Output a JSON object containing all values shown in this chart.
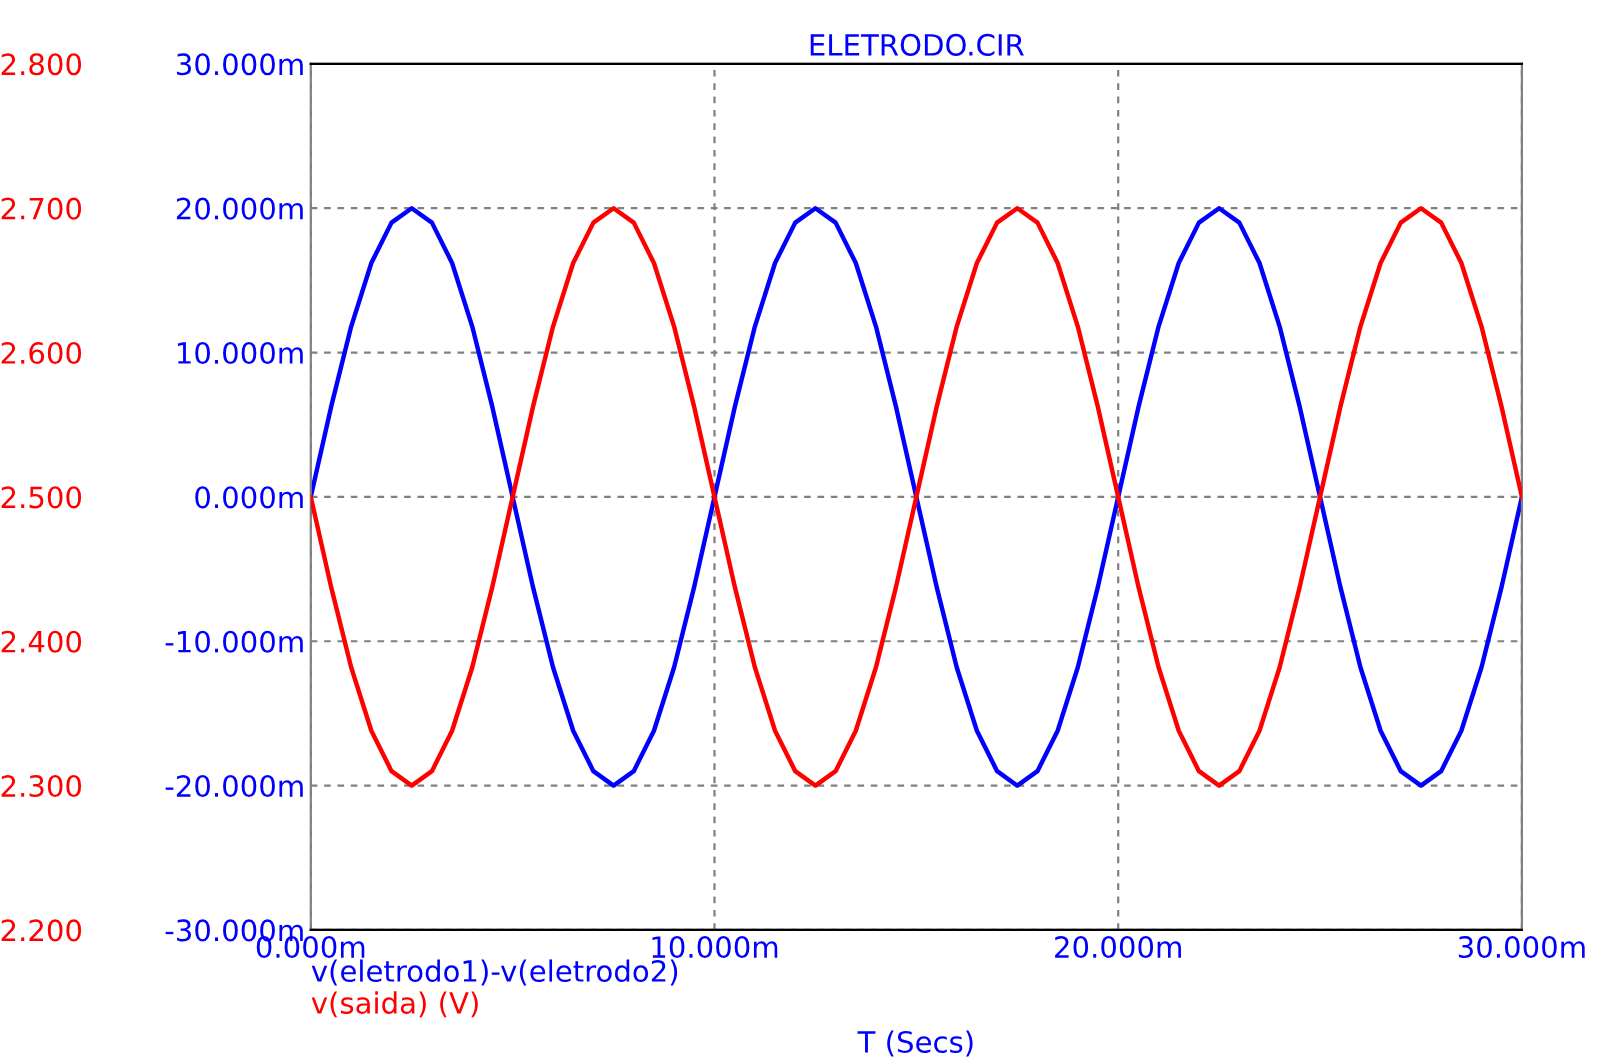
{
  "chart_data": {
    "type": "line",
    "title": "ELETRODO.CIR",
    "xlabel": "T (Secs)",
    "x": [
      0,
      0.5,
      1,
      1.5,
      2,
      2.5,
      3,
      3.5,
      4,
      4.5,
      5,
      5.5,
      6,
      6.5,
      7,
      7.5,
      8,
      8.5,
      9,
      9.5,
      10,
      10.5,
      11,
      11.5,
      12,
      12.5,
      13,
      13.5,
      14,
      14.5,
      15,
      15.5,
      16,
      16.5,
      17,
      17.5,
      18,
      18.5,
      19,
      19.5,
      20,
      20.5,
      21,
      21.5,
      22,
      22.5,
      23,
      23.5,
      24,
      24.5,
      25,
      25.5,
      26,
      26.5,
      27,
      27.5,
      28,
      28.5,
      29,
      29.5,
      30
    ],
    "series": [
      {
        "name": "v(eletrodo1)-v(eletrodo2)",
        "color": "#0000ff",
        "values": [
          0,
          6.2,
          11.8,
          16.2,
          19,
          20,
          19,
          16.2,
          11.8,
          6.2,
          0,
          -6.2,
          -11.8,
          -16.2,
          -19,
          -20,
          -19,
          -16.2,
          -11.8,
          -6.2,
          0,
          6.2,
          11.8,
          16.2,
          19,
          20,
          19,
          16.2,
          11.8,
          6.2,
          0,
          -6.2,
          -11.8,
          -16.2,
          -19,
          -20,
          -19,
          -16.2,
          -11.8,
          -6.2,
          0,
          6.2,
          11.8,
          16.2,
          19,
          20,
          19,
          16.2,
          11.8,
          6.2,
          0,
          -6.2,
          -11.8,
          -16.2,
          -19,
          -20,
          -19,
          -16.2,
          -11.8,
          -6.2,
          0
        ]
      },
      {
        "name": "v(saida) (V)",
        "color": "#ff0000",
        "axis": "y2",
        "values": [
          2.5,
          2.438,
          2.382,
          2.338,
          2.31,
          2.3,
          2.31,
          2.338,
          2.382,
          2.438,
          2.5,
          2.562,
          2.618,
          2.662,
          2.69,
          2.7,
          2.69,
          2.662,
          2.618,
          2.562,
          2.5,
          2.438,
          2.382,
          2.338,
          2.31,
          2.3,
          2.31,
          2.338,
          2.382,
          2.438,
          2.5,
          2.562,
          2.618,
          2.662,
          2.69,
          2.7,
          2.69,
          2.662,
          2.618,
          2.562,
          2.5,
          2.438,
          2.382,
          2.338,
          2.31,
          2.3,
          2.31,
          2.338,
          2.382,
          2.438,
          2.5,
          2.562,
          2.618,
          2.662,
          2.69,
          2.7,
          2.69,
          2.662,
          2.618,
          2.562,
          2.5
        ]
      }
    ],
    "xlim": [
      0,
      30
    ],
    "xticks": [
      {
        "value": 0,
        "label": "0.000m"
      },
      {
        "value": 10,
        "label": "10.000m"
      },
      {
        "value": 20,
        "label": "20.000m"
      },
      {
        "value": 30,
        "label": "30.000m"
      }
    ],
    "ylim": [
      -30,
      30
    ],
    "yticks": [
      {
        "value": -30,
        "label": "-30.000m"
      },
      {
        "value": -20,
        "label": "-20.000m"
      },
      {
        "value": -10,
        "label": "-10.000m"
      },
      {
        "value": 0,
        "label": "0.000m"
      },
      {
        "value": 10,
        "label": "10.000m"
      },
      {
        "value": 20,
        "label": "20.000m"
      },
      {
        "value": 30,
        "label": "30.000m"
      }
    ],
    "y2lim": [
      2.2,
      2.8
    ],
    "y2ticks": [
      {
        "value": 2.2,
        "label": "2.200"
      },
      {
        "value": 2.3,
        "label": "2.300"
      },
      {
        "value": 2.4,
        "label": "2.400"
      },
      {
        "value": 2.5,
        "label": "2.500"
      },
      {
        "value": 2.6,
        "label": "2.600"
      },
      {
        "value": 2.7,
        "label": "2.700"
      },
      {
        "value": 2.8,
        "label": "2.800"
      }
    ],
    "grid": true,
    "line_style": "solid"
  }
}
